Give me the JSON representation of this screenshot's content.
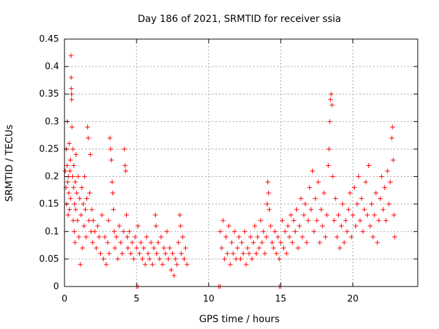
{
  "chart_data": {
    "type": "scatter",
    "title": "Day 186 of 2021, SRMTID for receiver ssia",
    "xlabel": "GPS time / hours",
    "ylabel": "SRMTID / TECUs",
    "xlim": [
      0,
      24.5
    ],
    "ylim": [
      0,
      0.45
    ],
    "x_ticks": [
      0,
      5,
      10,
      15,
      20
    ],
    "x_tick_labels": [
      "0",
      "5",
      "10",
      "15",
      "20"
    ],
    "y_ticks": [
      0,
      0.05,
      0.1,
      0.15,
      0.2,
      0.25,
      0.3,
      0.35,
      0.4,
      0.45
    ],
    "y_tick_labels": [
      "0",
      "0.05",
      "0.1",
      "0.15",
      "0.2",
      "0.25",
      "0.3",
      "0.35",
      "0.4",
      "0.45"
    ],
    "grid": true,
    "marker": "plus",
    "color": "#ff0000",
    "series": [
      {
        "name": "SRMTID",
        "points": [
          [
            0.05,
            0.21
          ],
          [
            0.1,
            0.18
          ],
          [
            0.12,
            0.25
          ],
          [
            0.15,
            0.15
          ],
          [
            0.18,
            0.22
          ],
          [
            0.2,
            0.3
          ],
          [
            0.22,
            0.19
          ],
          [
            0.25,
            0.13
          ],
          [
            0.28,
            0.2
          ],
          [
            0.3,
            0.17
          ],
          [
            0.33,
            0.26
          ],
          [
            0.35,
            0.14
          ],
          [
            0.38,
            0.21
          ],
          [
            0.4,
            0.23
          ],
          [
            0.42,
            0.16
          ],
          [
            0.45,
            0.42
          ],
          [
            0.47,
            0.38
          ],
          [
            0.48,
            0.36
          ],
          [
            0.5,
            0.35
          ],
          [
            0.5,
            0.34
          ],
          [
            0.52,
            0.29
          ],
          [
            0.55,
            0.2
          ],
          [
            0.58,
            0.25
          ],
          [
            0.6,
            0.12
          ],
          [
            0.63,
            0.18
          ],
          [
            0.65,
            0.22
          ],
          [
            0.68,
            0.1
          ],
          [
            0.7,
            0.15
          ],
          [
            0.73,
            0.08
          ],
          [
            0.75,
            0.19
          ],
          [
            0.78,
            0.14
          ],
          [
            0.8,
            0.24
          ],
          [
            0.85,
            0.17
          ],
          [
            0.9,
            0.12
          ],
          [
            0.95,
            0.2
          ],
          [
            1.0,
            0.09
          ],
          [
            1.05,
            0.16
          ],
          [
            1.1,
            0.04
          ],
          [
            1.15,
            0.13
          ],
          [
            1.2,
            0.18
          ],
          [
            1.25,
            0.07
          ],
          [
            1.3,
            0.15
          ],
          [
            1.35,
            0.11
          ],
          [
            1.4,
            0.2
          ],
          [
            1.45,
            0.14
          ],
          [
            1.5,
            0.09
          ],
          [
            1.55,
            0.16
          ],
          [
            1.6,
            0.29
          ],
          [
            1.65,
            0.27
          ],
          [
            1.7,
            0.12
          ],
          [
            1.75,
            0.17
          ],
          [
            1.8,
            0.24
          ],
          [
            1.85,
            0.1
          ],
          [
            1.9,
            0.14
          ],
          [
            1.95,
            0.08
          ],
          [
            2.0,
            0.12
          ],
          [
            2.1,
            0.1
          ],
          [
            2.2,
            0.07
          ],
          [
            2.3,
            0.11
          ],
          [
            2.4,
            0.09
          ],
          [
            2.5,
            0.06
          ],
          [
            2.6,
            0.13
          ],
          [
            2.7,
            0.05
          ],
          [
            2.8,
            0.09
          ],
          [
            2.9,
            0.04
          ],
          [
            3.0,
            0.08
          ],
          [
            3.05,
            0.12
          ],
          [
            3.1,
            0.06
          ],
          [
            3.15,
            0.27
          ],
          [
            3.2,
            0.25
          ],
          [
            3.25,
            0.23
          ],
          [
            3.3,
            0.19
          ],
          [
            3.35,
            0.17
          ],
          [
            3.4,
            0.14
          ],
          [
            3.45,
            0.1
          ],
          [
            3.5,
            0.07
          ],
          [
            3.6,
            0.09
          ],
          [
            3.7,
            0.05
          ],
          [
            3.8,
            0.11
          ],
          [
            3.9,
            0.08
          ],
          [
            4.0,
            0.06
          ],
          [
            4.1,
            0.1
          ],
          [
            4.15,
            0.25
          ],
          [
            4.2,
            0.22
          ],
          [
            4.25,
            0.21
          ],
          [
            4.3,
            0.13
          ],
          [
            4.35,
            0.09
          ],
          [
            4.4,
            0.07
          ],
          [
            4.5,
            0.1
          ],
          [
            4.6,
            0.06
          ],
          [
            4.7,
            0.08
          ],
          [
            4.8,
            0.05
          ],
          [
            4.9,
            0.09
          ],
          [
            5.0,
            0.07
          ],
          [
            5.1,
            0.11
          ],
          [
            5.2,
            0.06
          ],
          [
            5.3,
            0.08
          ],
          [
            5.4,
            0.05
          ],
          [
            5.5,
            0.07
          ],
          [
            5.6,
            0.04
          ],
          [
            5.7,
            0.09
          ],
          [
            5.8,
            0.06
          ],
          [
            5.9,
            0.05
          ],
          [
            6.0,
            0.08
          ],
          [
            6.1,
            0.04
          ],
          [
            6.2,
            0.07
          ],
          [
            6.3,
            0.13
          ],
          [
            6.35,
            0.11
          ],
          [
            6.4,
            0.06
          ],
          [
            6.5,
            0.08
          ],
          [
            6.6,
            0.05
          ],
          [
            6.7,
            0.09
          ],
          [
            6.8,
            0.04
          ],
          [
            6.9,
            0.07
          ],
          [
            7.0,
            0.06
          ],
          [
            7.1,
            0.1
          ],
          [
            7.2,
            0.05
          ],
          [
            7.3,
            0.07
          ],
          [
            7.4,
            0.03
          ],
          [
            7.5,
            0.06
          ],
          [
            7.6,
            0.02
          ],
          [
            7.7,
            0.05
          ],
          [
            7.8,
            0.04
          ],
          [
            7.9,
            0.08
          ],
          [
            8.0,
            0.13
          ],
          [
            8.05,
            0.11
          ],
          [
            8.1,
            0.06
          ],
          [
            8.2,
            0.09
          ],
          [
            8.3,
            0.05
          ],
          [
            8.4,
            0.07
          ],
          [
            8.5,
            0.04
          ],
          [
            5.0,
            0.0
          ],
          [
            5.1,
            0.0
          ],
          [
            10.7,
            0.0
          ],
          [
            10.8,
            0.0
          ],
          [
            14.9,
            0.0
          ],
          [
            15.0,
            0.0
          ],
          [
            10.8,
            0.1
          ],
          [
            10.9,
            0.07
          ],
          [
            11.0,
            0.12
          ],
          [
            11.1,
            0.05
          ],
          [
            11.2,
            0.09
          ],
          [
            11.3,
            0.06
          ],
          [
            11.4,
            0.11
          ],
          [
            11.5,
            0.04
          ],
          [
            11.6,
            0.08
          ],
          [
            11.7,
            0.06
          ],
          [
            11.8,
            0.1
          ],
          [
            11.9,
            0.05
          ],
          [
            12.0,
            0.07
          ],
          [
            12.1,
            0.09
          ],
          [
            12.2,
            0.05
          ],
          [
            12.3,
            0.08
          ],
          [
            12.4,
            0.06
          ],
          [
            12.5,
            0.1
          ],
          [
            12.6,
            0.04
          ],
          [
            12.7,
            0.07
          ],
          [
            12.8,
            0.06
          ],
          [
            12.9,
            0.09
          ],
          [
            13.0,
            0.05
          ],
          [
            13.1,
            0.08
          ],
          [
            13.2,
            0.11
          ],
          [
            13.3,
            0.06
          ],
          [
            13.4,
            0.09
          ],
          [
            13.5,
            0.07
          ],
          [
            13.6,
            0.12
          ],
          [
            13.7,
            0.08
          ],
          [
            13.8,
            0.1
          ],
          [
            13.9,
            0.06
          ],
          [
            14.0,
            0.09
          ],
          [
            14.05,
            0.15
          ],
          [
            14.1,
            0.19
          ],
          [
            14.15,
            0.17
          ],
          [
            14.2,
            0.14
          ],
          [
            14.3,
            0.11
          ],
          [
            14.4,
            0.08
          ],
          [
            14.5,
            0.07
          ],
          [
            14.6,
            0.1
          ],
          [
            14.7,
            0.06
          ],
          [
            14.8,
            0.09
          ],
          [
            14.9,
            0.05
          ],
          [
            15.0,
            0.08
          ],
          [
            15.1,
            0.12
          ],
          [
            15.2,
            0.07
          ],
          [
            15.3,
            0.1
          ],
          [
            15.4,
            0.06
          ],
          [
            15.5,
            0.11
          ],
          [
            15.6,
            0.09
          ],
          [
            15.7,
            0.13
          ],
          [
            15.8,
            0.08
          ],
          [
            15.9,
            0.12
          ],
          [
            16.0,
            0.1
          ],
          [
            16.1,
            0.14
          ],
          [
            16.2,
            0.07
          ],
          [
            16.3,
            0.11
          ],
          [
            16.4,
            0.16
          ],
          [
            16.5,
            0.09
          ],
          [
            16.6,
            0.13
          ],
          [
            16.7,
            0.15
          ],
          [
            16.8,
            0.08
          ],
          [
            16.9,
            0.12
          ],
          [
            17.0,
            0.18
          ],
          [
            17.1,
            0.14
          ],
          [
            17.2,
            0.21
          ],
          [
            17.3,
            0.1
          ],
          [
            17.4,
            0.16
          ],
          [
            17.5,
            0.12
          ],
          [
            17.6,
            0.19
          ],
          [
            17.7,
            0.08
          ],
          [
            17.8,
            0.14
          ],
          [
            17.9,
            0.11
          ],
          [
            18.0,
            0.17
          ],
          [
            18.1,
            0.09
          ],
          [
            18.2,
            0.13
          ],
          [
            18.3,
            0.22
          ],
          [
            18.35,
            0.25
          ],
          [
            18.4,
            0.3
          ],
          [
            18.45,
            0.34
          ],
          [
            18.5,
            0.35
          ],
          [
            18.55,
            0.33
          ],
          [
            18.6,
            0.2
          ],
          [
            18.7,
            0.12
          ],
          [
            18.8,
            0.16
          ],
          [
            18.9,
            0.09
          ],
          [
            19.0,
            0.13
          ],
          [
            19.1,
            0.07
          ],
          [
            19.2,
            0.11
          ],
          [
            19.3,
            0.15
          ],
          [
            19.4,
            0.08
          ],
          [
            19.5,
            0.12
          ],
          [
            19.6,
            0.1
          ],
          [
            19.7,
            0.14
          ],
          [
            19.8,
            0.17
          ],
          [
            19.9,
            0.09
          ],
          [
            20.0,
            0.13
          ],
          [
            20.1,
            0.18
          ],
          [
            20.2,
            0.11
          ],
          [
            20.3,
            0.15
          ],
          [
            20.4,
            0.2
          ],
          [
            20.5,
            0.12
          ],
          [
            20.6,
            0.16
          ],
          [
            20.7,
            0.1
          ],
          [
            20.8,
            0.14
          ],
          [
            20.9,
            0.19
          ],
          [
            21.0,
            0.13
          ],
          [
            21.1,
            0.22
          ],
          [
            21.2,
            0.11
          ],
          [
            21.3,
            0.15
          ],
          [
            21.4,
            0.09
          ],
          [
            21.5,
            0.13
          ],
          [
            21.6,
            0.17
          ],
          [
            21.7,
            0.08
          ],
          [
            21.8,
            0.12
          ],
          [
            21.9,
            0.16
          ],
          [
            22.0,
            0.2
          ],
          [
            22.1,
            0.14
          ],
          [
            22.2,
            0.18
          ],
          [
            22.3,
            0.12
          ],
          [
            22.4,
            0.21
          ],
          [
            22.5,
            0.15
          ],
          [
            22.6,
            0.19
          ],
          [
            22.7,
            0.27
          ],
          [
            22.75,
            0.29
          ],
          [
            22.8,
            0.23
          ],
          [
            22.85,
            0.13
          ],
          [
            22.9,
            0.09
          ]
        ]
      }
    ]
  }
}
